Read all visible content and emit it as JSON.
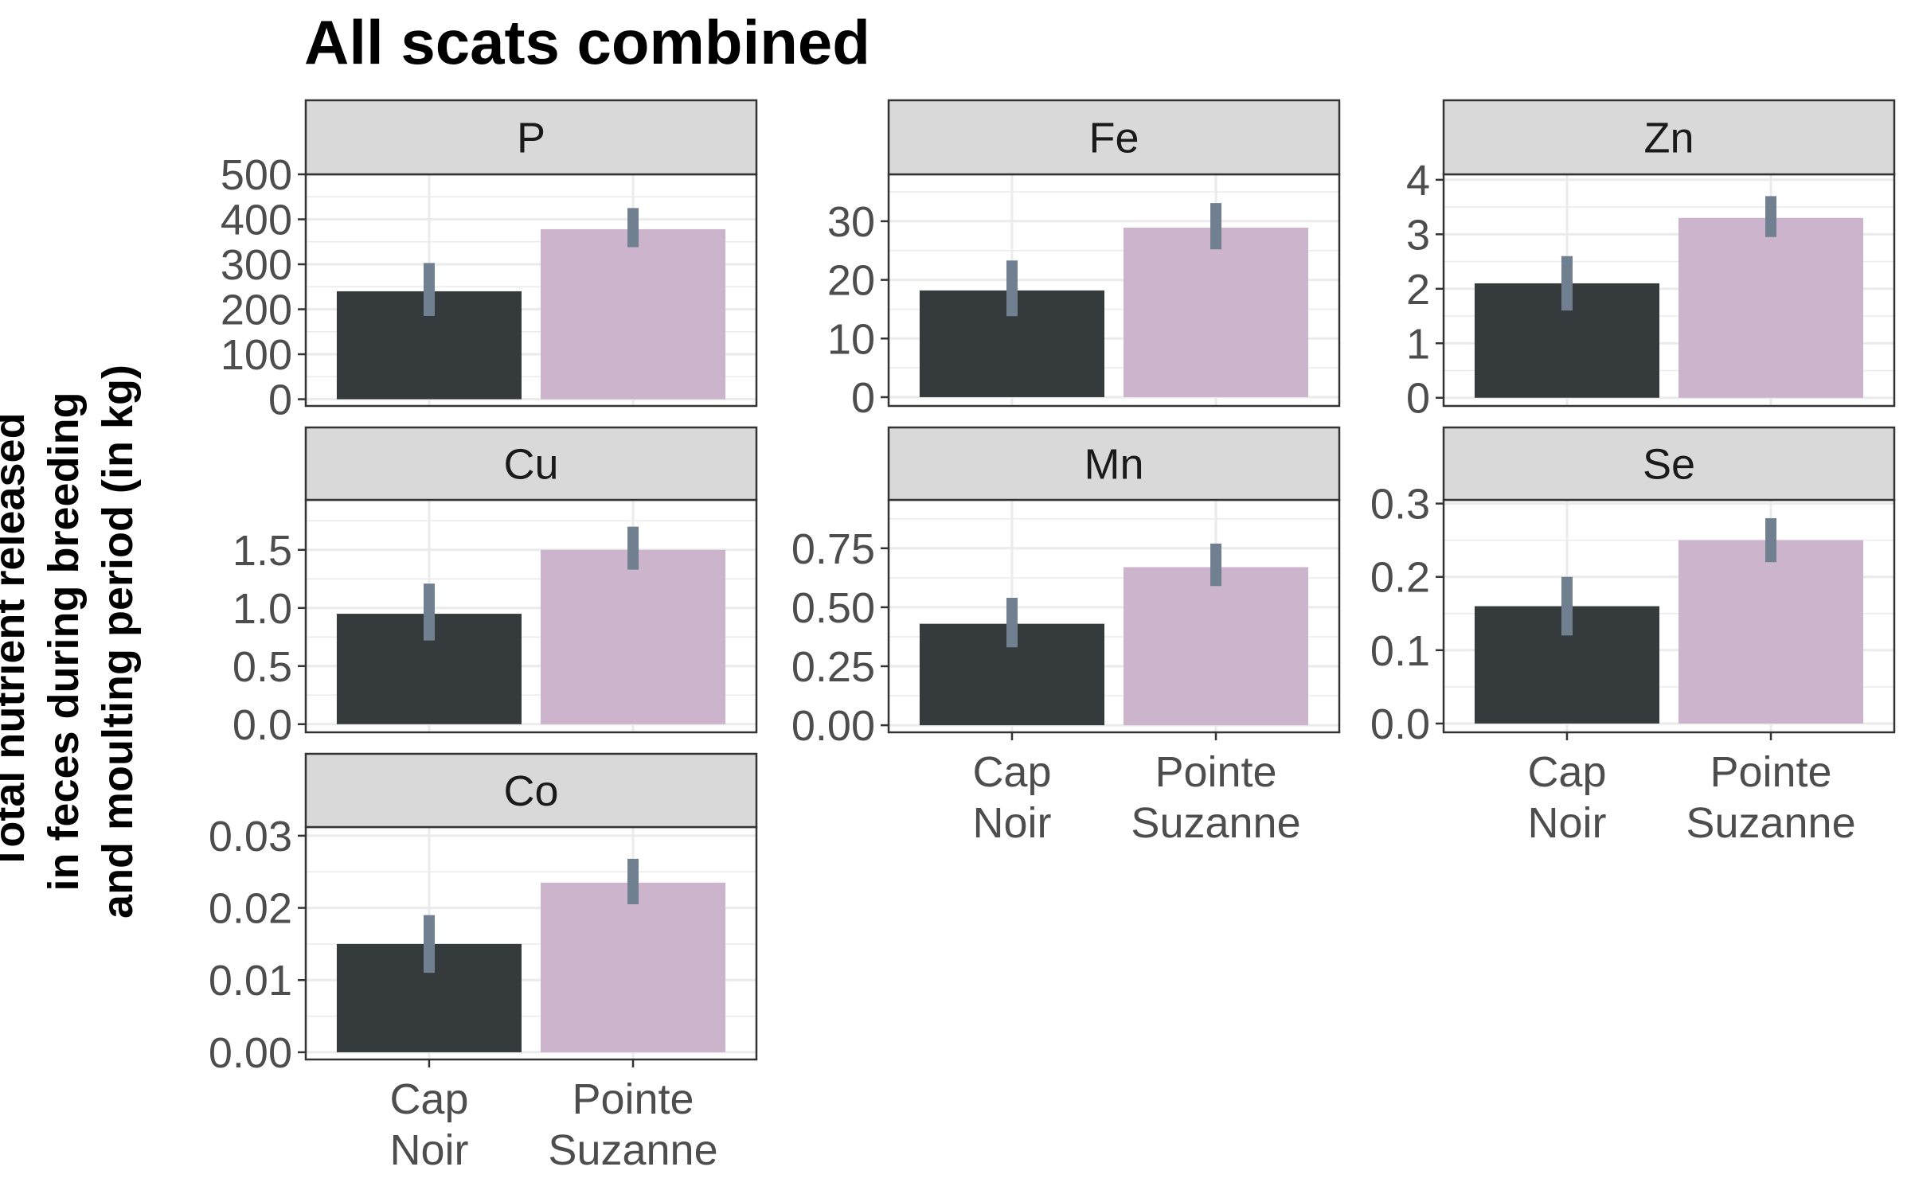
{
  "chart_data": {
    "type": "bar",
    "title": "All scats combined",
    "ylabel_lines": [
      "Total nutrient released",
      "in feces during breeding",
      "and moulting period (in kg)"
    ],
    "categories": [
      [
        "Cap",
        "Noir"
      ],
      [
        "Pointe",
        "Suzanne"
      ]
    ],
    "colors": {
      "Cap Noir": "#353a3c",
      "Pointe Suzanne": "#ccb4cc",
      "error_bar": "#708090",
      "strip_fill": "#d9d9d9",
      "panel_border": "#333333",
      "grid": "#ebebeb"
    },
    "grid": true,
    "panels": [
      {
        "label": "P",
        "ylim": [
          -15,
          500
        ],
        "ticks": [
          "0",
          "100",
          "200",
          "300",
          "400",
          "500"
        ],
        "tick_values": [
          0,
          100,
          200,
          300,
          400,
          500
        ],
        "values": [
          240,
          378
        ],
        "errors": [
          [
            185,
            303
          ],
          [
            338,
            425
          ]
        ]
      },
      {
        "label": "Fe",
        "ylim": [
          -1.5,
          38
        ],
        "ticks": [
          "0",
          "10",
          "20",
          "30"
        ],
        "tick_values": [
          0,
          10,
          20,
          30
        ],
        "values": [
          18.2,
          28.9
        ],
        "errors": [
          [
            13.8,
            23.3
          ],
          [
            25.2,
            33.1
          ]
        ]
      },
      {
        "label": "Zn",
        "ylim": [
          -0.15,
          4.1
        ],
        "ticks": [
          "0",
          "1",
          "2",
          "3",
          "4"
        ],
        "tick_values": [
          0,
          1,
          2,
          3,
          4
        ],
        "values": [
          2.1,
          3.3
        ],
        "errors": [
          [
            1.6,
            2.6
          ],
          [
            2.95,
            3.7
          ]
        ]
      },
      {
        "label": "Cu",
        "ylim": [
          -0.07,
          1.93
        ],
        "ticks": [
          "0.0",
          "0.5",
          "1.0",
          "1.5"
        ],
        "tick_values": [
          0,
          0.5,
          1.0,
          1.5
        ],
        "values": [
          0.95,
          1.5
        ],
        "errors": [
          [
            0.72,
            1.21
          ],
          [
            1.33,
            1.7
          ]
        ]
      },
      {
        "label": "Mn",
        "ylim": [
          -0.03,
          0.955
        ],
        "ticks": [
          "0.00",
          "0.25",
          "0.50",
          "0.75"
        ],
        "tick_values": [
          0,
          0.25,
          0.5,
          0.75
        ],
        "values": [
          0.43,
          0.67
        ],
        "errors": [
          [
            0.33,
            0.54
          ],
          [
            0.59,
            0.77
          ]
        ]
      },
      {
        "label": "Se",
        "ylim": [
          -0.012,
          0.305
        ],
        "ticks": [
          "0.0",
          "0.1",
          "0.2",
          "0.3"
        ],
        "tick_values": [
          0,
          0.1,
          0.2,
          0.3
        ],
        "values": [
          0.16,
          0.25
        ],
        "errors": [
          [
            0.12,
            0.2
          ],
          [
            0.22,
            0.28
          ]
        ]
      },
      {
        "label": "Co",
        "ylim": [
          -0.001,
          0.0312
        ],
        "ticks": [
          "0.00",
          "0.01",
          "0.02",
          "0.03"
        ],
        "tick_values": [
          0,
          0.01,
          0.02,
          0.03
        ],
        "values": [
          0.015,
          0.0235
        ],
        "errors": [
          [
            0.011,
            0.019
          ],
          [
            0.0205,
            0.0268
          ]
        ]
      }
    ]
  }
}
